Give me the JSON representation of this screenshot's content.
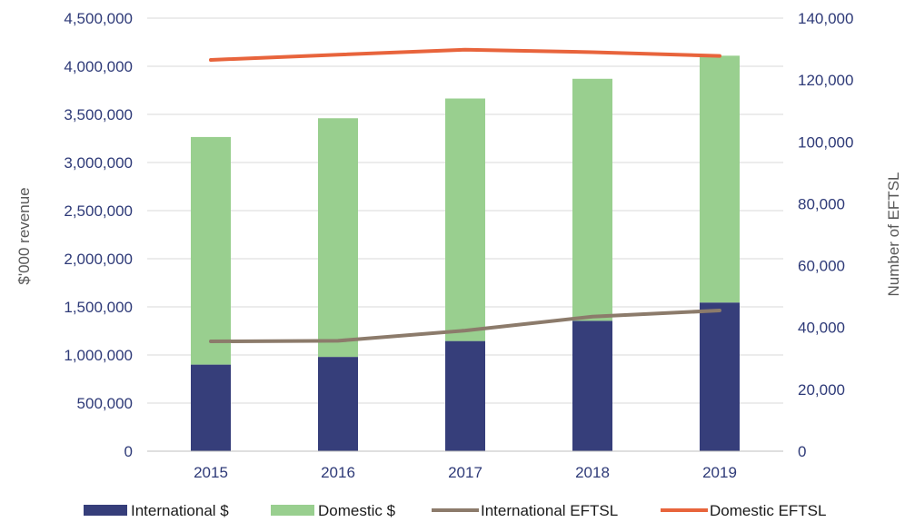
{
  "chart_data": {
    "type": "bar",
    "title": "",
    "categories": [
      "2015",
      "2016",
      "2017",
      "2018",
      "2019"
    ],
    "bar_series": [
      {
        "name": "International $",
        "color": "#363e7a",
        "values": [
          900000,
          980000,
          1145000,
          1355000,
          1545000
        ]
      },
      {
        "name": "Domestic $",
        "color": "#99cf8f",
        "values": [
          2365000,
          2480000,
          2520000,
          2515000,
          2565000
        ]
      }
    ],
    "line_series": [
      {
        "name": "International EFTSL",
        "color": "#8c7b6b",
        "axis": "right",
        "values": [
          35500,
          35700,
          39000,
          43500,
          45500
        ]
      },
      {
        "name": "Domestic EFTSL",
        "color": "#e8643c",
        "axis": "right",
        "values": [
          126500,
          128200,
          129800,
          129000,
          127800
        ]
      }
    ],
    "stacked": true,
    "ylabel": "$'000 revenue",
    "ylabel_right": "Number of EFTSL",
    "ylim": [
      0,
      4500000
    ],
    "ylim_right": [
      0,
      140000
    ],
    "yticks": [
      "0",
      "500,000",
      "1,000,000",
      "1,500,000",
      "2,000,000",
      "2,500,000",
      "3,000,000",
      "3,500,000",
      "4,000,000",
      "4,500,000"
    ],
    "yticks_right": [
      "0",
      "20,000",
      "40,000",
      "60,000",
      "80,000",
      "100,000",
      "120,000",
      "140,000"
    ],
    "grid": true,
    "legend_position": "bottom"
  }
}
